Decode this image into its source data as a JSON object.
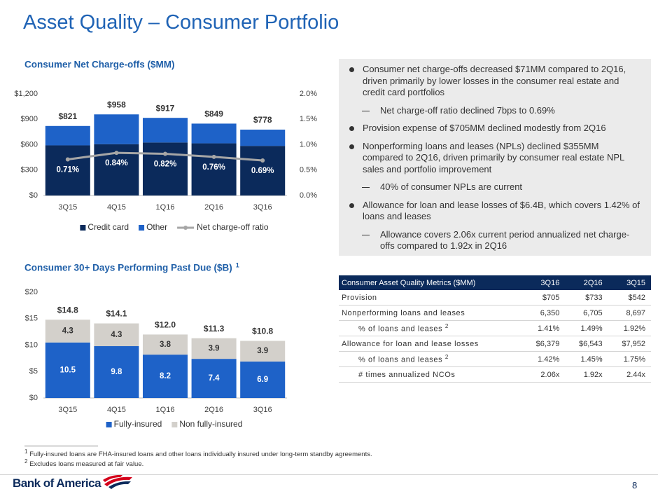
{
  "title": "Asset Quality – Consumer Portfolio",
  "chart_data": [
    {
      "type": "bar",
      "stacked": true,
      "title": "Consumer Net Charge-offs ($MM)",
      "categories": [
        "3Q15",
        "4Q15",
        "1Q16",
        "2Q16",
        "3Q16"
      ],
      "series": [
        {
          "name": "Credit card",
          "color": "#0b2a5b",
          "values": [
            592,
            606,
            626,
            616,
            586
          ]
        },
        {
          "name": "Other",
          "color": "#1e62c8",
          "values": [
            229,
            352,
            291,
            233,
            192
          ]
        },
        {
          "name": "Net charge-off ratio",
          "type": "line",
          "axis": "y2",
          "color": "#a6a6a6",
          "values": [
            0.71,
            0.84,
            0.82,
            0.76,
            0.69
          ],
          "value_labels": [
            "0.71%",
            "0.84%",
            "0.82%",
            "0.76%",
            "0.69%"
          ]
        }
      ],
      "totals": {
        "values": [
          821,
          958,
          917,
          849,
          778
        ],
        "value_labels": [
          "$821",
          "$958",
          "$917",
          "$849",
          "$778"
        ]
      },
      "ylim": [
        0,
        1200
      ],
      "yticks": [
        {
          "value": 0,
          "label": "$0"
        },
        {
          "value": 300,
          "label": "$300"
        },
        {
          "value": 600,
          "label": "$600"
        },
        {
          "value": 900,
          "label": "$900"
        },
        {
          "value": 1200,
          "label": "$1,200"
        }
      ],
      "y2lim": [
        0,
        2
      ],
      "y2ticks": [
        {
          "value": 0,
          "label": "0.0%"
        },
        {
          "value": 0.5,
          "label": "0.5%"
        },
        {
          "value": 1,
          "label": "1.0%"
        },
        {
          "value": 1.5,
          "label": "1.5%"
        },
        {
          "value": 2,
          "label": "2.0%"
        }
      ],
      "grid": false,
      "legend": "bottom"
    },
    {
      "type": "bar",
      "stacked": true,
      "title": "Consumer 30+ Days Performing Past Due ($B)",
      "title_note": "1",
      "categories": [
        "3Q15",
        "4Q15",
        "1Q16",
        "2Q16",
        "3Q16"
      ],
      "series": [
        {
          "name": "Fully-insured",
          "color": "#1e62c8",
          "label_color": "#ffffff",
          "values": [
            10.5,
            9.8,
            8.2,
            7.4,
            6.9
          ]
        },
        {
          "name": "Non fully-insured",
          "color": "#d3d0cb",
          "label_color": "#333333",
          "values": [
            4.3,
            4.3,
            3.8,
            3.9,
            3.9
          ]
        }
      ],
      "totals": {
        "values": [
          14.8,
          14.1,
          12.0,
          11.3,
          10.8
        ],
        "value_labels": [
          "$14.8",
          "$14.1",
          "$12.0",
          "$11.3",
          "$10.8"
        ]
      },
      "ylim": [
        0,
        20
      ],
      "yticks": [
        {
          "value": 0,
          "label": "$0"
        },
        {
          "value": 5,
          "label": "$5"
        },
        {
          "value": 10,
          "label": "$10"
        },
        {
          "value": 15,
          "label": "$15"
        },
        {
          "value": 20,
          "label": "$20"
        }
      ],
      "grid": false,
      "legend": "bottom"
    }
  ],
  "bullets": [
    {
      "text": "Consumer net charge-offs decreased $71MM compared to 2Q16, driven primarily by lower losses in the consumer real estate and credit card portfolios",
      "sub": [
        "Net charge-off ratio declined 7bps to 0.69%"
      ]
    },
    {
      "text": "Provision expense of $705MM declined modestly from 2Q16"
    },
    {
      "text": "Nonperforming loans and leases (NPLs) declined $355MM compared to 2Q16, driven primarily by consumer real estate NPL sales and portfolio improvement",
      "sub": [
        "40% of consumer NPLs are current"
      ]
    },
    {
      "text": "Allowance for loan and lease losses of $6.4B, which covers 1.42% of loans and leases",
      "sub": [
        "Allowance covers 2.06x current period annualized net charge-offs compared to 1.92x in 2Q16"
      ]
    }
  ],
  "table": {
    "header": [
      "Consumer Asset Quality Metrics ($MM)",
      "3Q16",
      "2Q16",
      "3Q15"
    ],
    "rows": [
      {
        "label": "Provision",
        "values": [
          "$705",
          "$733",
          "$542"
        ]
      },
      {
        "label": "Nonperforming loans and leases",
        "values": [
          "6,350",
          "6,705",
          "8,697"
        ]
      },
      {
        "label": "% of loans and leases",
        "note": "2",
        "values": [
          "1.41%",
          "1.49%",
          "1.92%"
        ]
      },
      {
        "label": "Allowance for loan and lease losses",
        "values": [
          "$6,379",
          "$6,543",
          "$7,952"
        ]
      },
      {
        "label": "% of loans and leases",
        "note": "2",
        "values": [
          "1.42%",
          "1.45%",
          "1.75%"
        ]
      },
      {
        "label": "# times annualized NCOs",
        "values": [
          "2.06x",
          "1.92x",
          "2.44x"
        ]
      }
    ]
  },
  "footnotes": [
    {
      "note": "1",
      "text": "Fully-insured loans are FHA-insured loans and other loans individually insured under long-term standby agreements."
    },
    {
      "note": "2",
      "text": "Excludes loans measured at fair value."
    }
  ],
  "logo": "Bank of America",
  "page_number": "8"
}
